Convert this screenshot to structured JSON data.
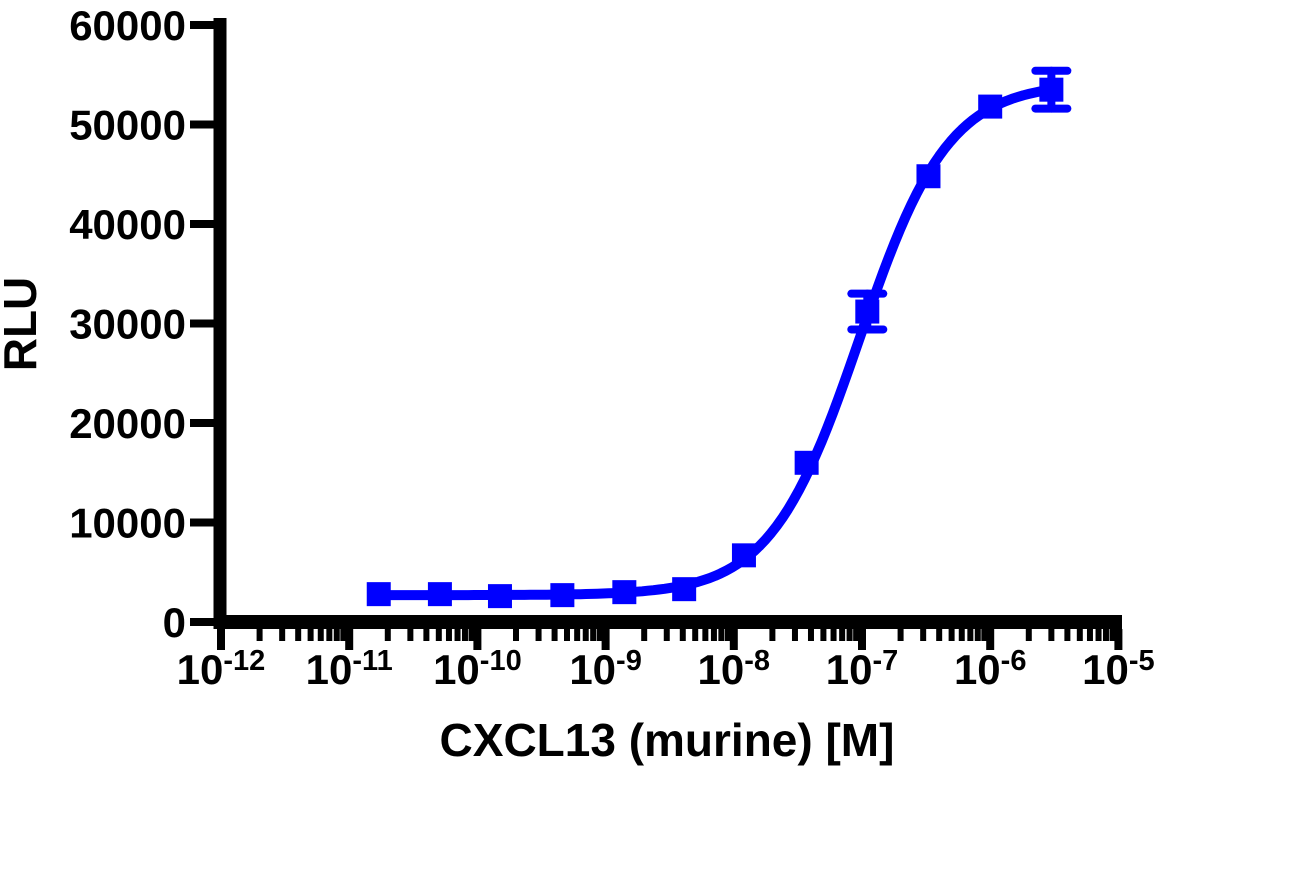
{
  "chart_data": {
    "type": "line",
    "title": "",
    "xlabel": "CXCL13 (murine) [M]",
    "ylabel": "RLU",
    "x_scale": "log10",
    "x_tick_exponents": [
      -12,
      -11,
      -10,
      -9,
      -8,
      -7,
      -6,
      -5
    ],
    "x_minor_ticks": "log subdivisions 2-9 per decade",
    "y_ticks": [
      0,
      10000,
      20000,
      30000,
      40000,
      50000,
      60000
    ],
    "ylim": [
      0,
      60000
    ],
    "grid": false,
    "legend": "none",
    "axis_color": "#000000",
    "series": [
      {
        "name": "CXCL13 (murine)",
        "color": "#0000ff",
        "marker": "square",
        "points": [
          {
            "conc_M": 1.7e-11,
            "rlu": 2800,
            "sem": null
          },
          {
            "conc_M": 5.1e-11,
            "rlu": 2800,
            "sem": null
          },
          {
            "conc_M": 1.5e-10,
            "rlu": 2600,
            "sem": null
          },
          {
            "conc_M": 4.6e-10,
            "rlu": 2700,
            "sem": null
          },
          {
            "conc_M": 1.4e-09,
            "rlu": 3000,
            "sem": null
          },
          {
            "conc_M": 4.1e-09,
            "rlu": 3300,
            "sem": null
          },
          {
            "conc_M": 1.2e-08,
            "rlu": 6700,
            "sem": null
          },
          {
            "conc_M": 3.7e-08,
            "rlu": 16000,
            "sem": null
          },
          {
            "conc_M": 1.1e-07,
            "rlu": 31200,
            "sem": 1800
          },
          {
            "conc_M": 3.3e-07,
            "rlu": 44800,
            "sem": null
          },
          {
            "conc_M": 1e-06,
            "rlu": 51800,
            "sem": null
          },
          {
            "conc_M": 3e-06,
            "rlu": 53500,
            "sem": 1900
          }
        ],
        "fit_curve": {
          "model": "four-parameter logistic",
          "bottom": 2700,
          "top": 54200,
          "log_ec50": -7.02,
          "hill_slope": 1.25
        }
      }
    ]
  }
}
